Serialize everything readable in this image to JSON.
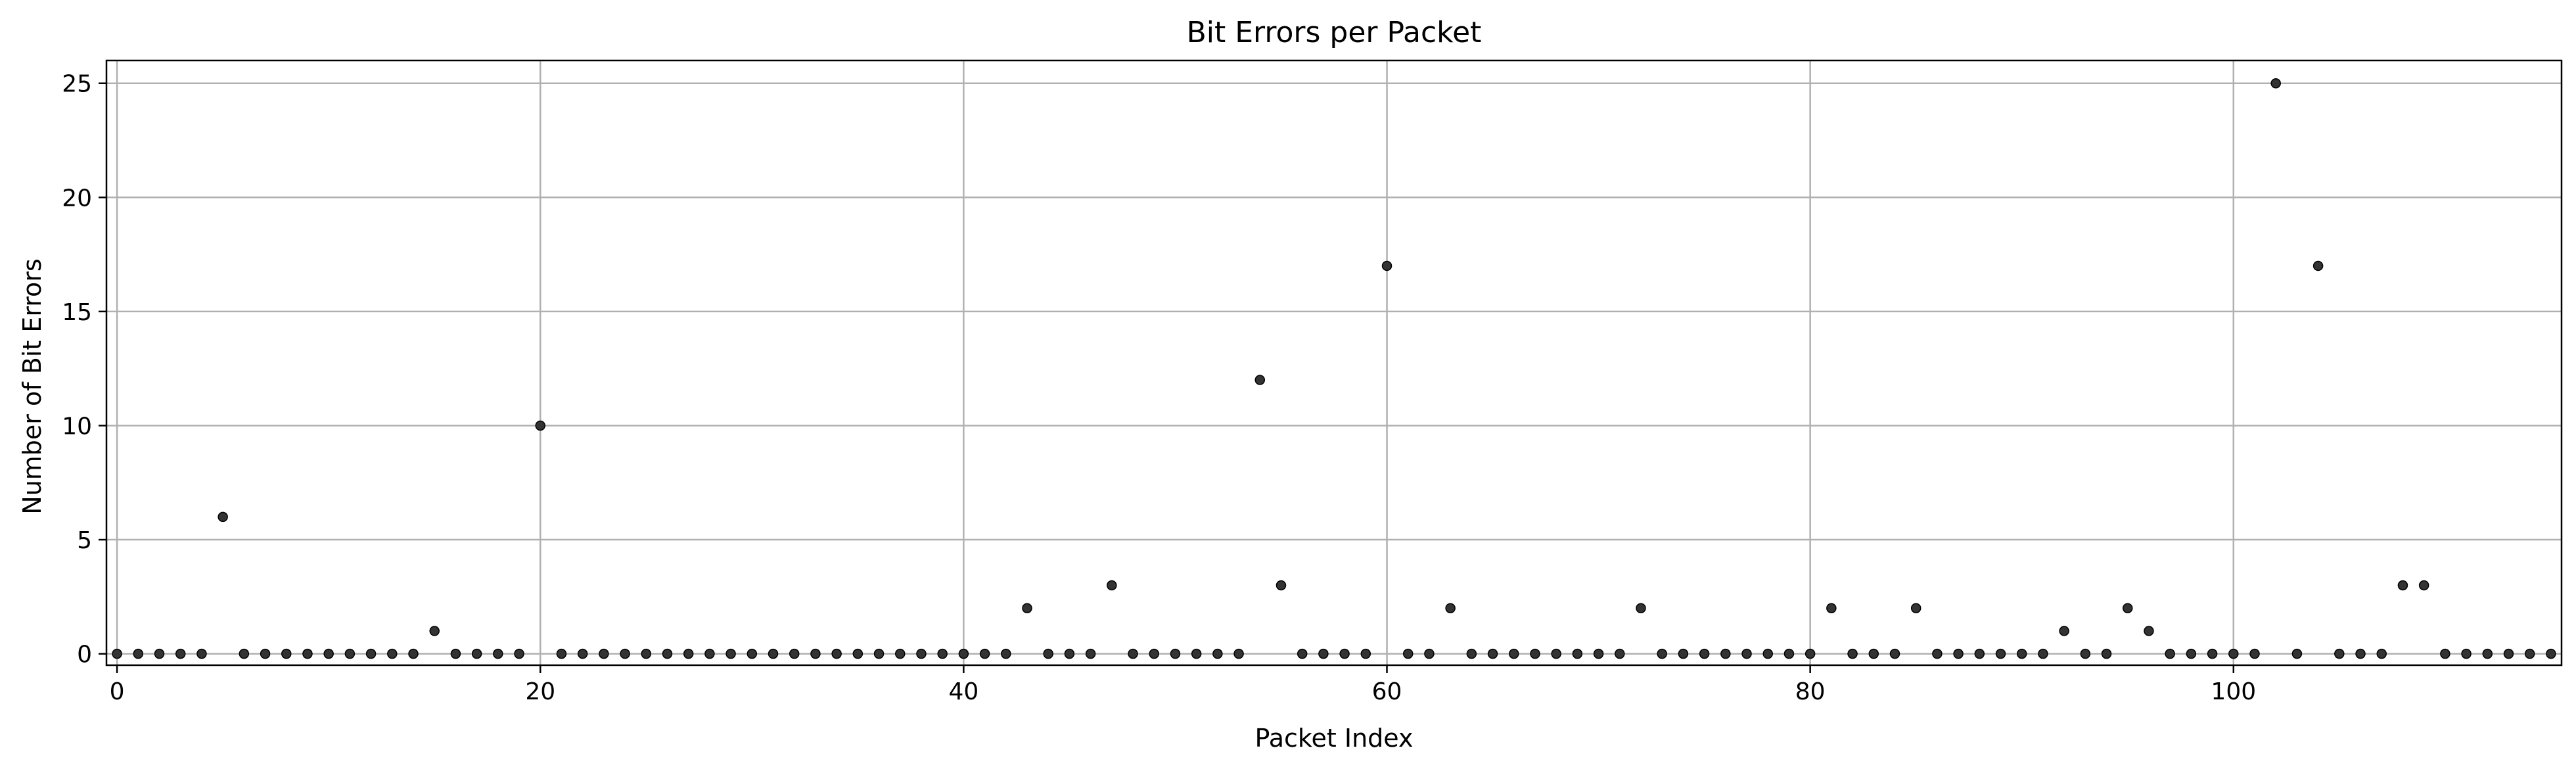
{
  "chart_data": {
    "type": "scatter",
    "title": "Bit Errors per Packet",
    "xlabel": "Packet Index",
    "ylabel": "Number of Bit Errors",
    "xlim": [
      -0.5,
      115.5
    ],
    "ylim": [
      -0.5,
      26
    ],
    "xticks": [
      0,
      20,
      40,
      60,
      80,
      100
    ],
    "yticks": [
      0,
      5,
      10,
      15,
      20,
      25
    ],
    "grid": true,
    "marker_color": "#333333",
    "x": [
      0,
      1,
      2,
      3,
      4,
      5,
      6,
      7,
      8,
      9,
      10,
      11,
      12,
      13,
      14,
      15,
      16,
      17,
      18,
      19,
      20,
      21,
      22,
      23,
      24,
      25,
      26,
      27,
      28,
      29,
      30,
      31,
      32,
      33,
      34,
      35,
      36,
      37,
      38,
      39,
      40,
      41,
      42,
      43,
      44,
      45,
      46,
      47,
      48,
      49,
      50,
      51,
      52,
      53,
      54,
      55,
      56,
      57,
      58,
      59,
      60,
      61,
      62,
      63,
      64,
      65,
      66,
      67,
      68,
      69,
      70,
      71,
      72,
      73,
      74,
      75,
      76,
      77,
      78,
      79,
      80,
      81,
      82,
      83,
      84,
      85,
      86,
      87,
      88,
      89,
      90,
      91,
      92,
      93,
      94,
      95,
      96,
      97,
      98,
      99,
      100,
      101,
      102,
      103,
      104,
      105,
      106,
      107,
      108,
      109,
      110,
      111,
      112,
      113,
      114,
      115
    ],
    "y": [
      0,
      0,
      0,
      0,
      0,
      6,
      0,
      0,
      0,
      0,
      0,
      0,
      0,
      0,
      0,
      1,
      0,
      0,
      0,
      0,
      10,
      0,
      0,
      0,
      0,
      0,
      0,
      0,
      0,
      0,
      0,
      0,
      0,
      0,
      0,
      0,
      0,
      0,
      0,
      0,
      0,
      0,
      0,
      2,
      0,
      0,
      0,
      3,
      0,
      0,
      0,
      0,
      0,
      0,
      12,
      3,
      0,
      0,
      0,
      0,
      17,
      0,
      0,
      2,
      0,
      0,
      0,
      0,
      0,
      0,
      0,
      0,
      2,
      0,
      0,
      0,
      0,
      0,
      0,
      0,
      0,
      2,
      0,
      0,
      0,
      2,
      0,
      0,
      0,
      0,
      0,
      0,
      1,
      0,
      0,
      2,
      1,
      0,
      0,
      0,
      0,
      0,
      25,
      0,
      17,
      0,
      0,
      0,
      3,
      3,
      0,
      0,
      0,
      0,
      0,
      0
    ]
  }
}
